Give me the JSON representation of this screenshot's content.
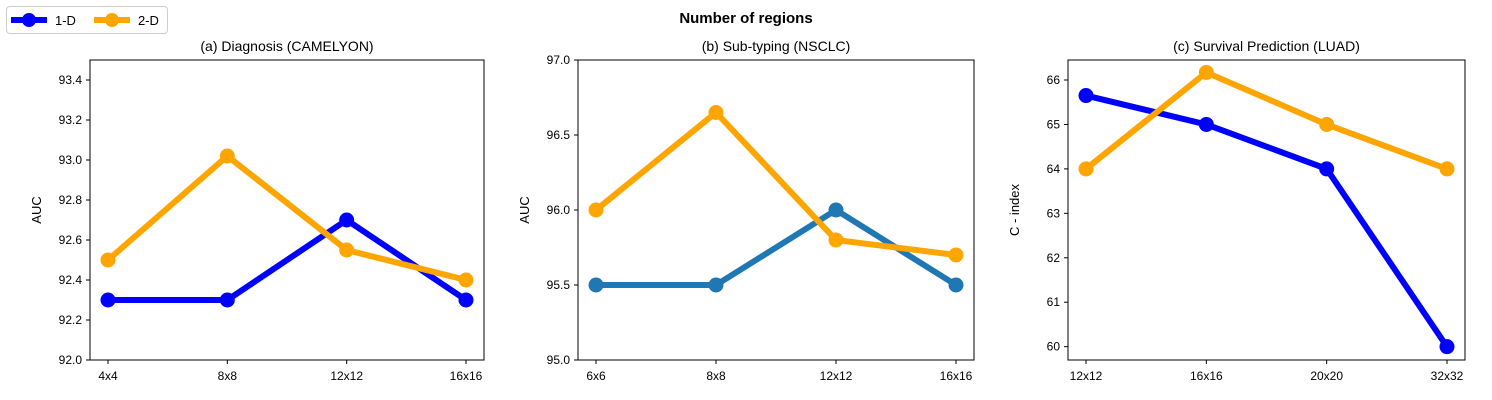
{
  "suptitle": "Number of regions",
  "legend": [
    {
      "label": "1-D",
      "color": "#0000ff"
    },
    {
      "label": "2-D",
      "color": "#ffa500"
    }
  ],
  "chart_data": [
    {
      "type": "line",
      "title": "(a) Diagnosis (CAMELYON)",
      "xlabel": "",
      "ylabel": "AUC",
      "categories": [
        "4x4",
        "8x8",
        "12x12",
        "16x16"
      ],
      "ylim": [
        92.0,
        93.5
      ],
      "yticks": [
        "92.0",
        "92.2",
        "92.4",
        "92.6",
        "92.8",
        "93.0",
        "93.2",
        "93.4"
      ],
      "series": [
        {
          "name": "1-D",
          "color": "#0000ff",
          "values": [
            92.3,
            92.3,
            92.7,
            92.3
          ]
        },
        {
          "name": "2-D",
          "color": "#ffa500",
          "values": [
            92.5,
            93.02,
            92.55,
            92.4
          ]
        }
      ]
    },
    {
      "type": "line",
      "title": "(b) Sub-typing (NSCLC)",
      "xlabel": "",
      "ylabel": "AUC",
      "categories": [
        "6x6",
        "8x8",
        "12x12",
        "16x16"
      ],
      "ylim": [
        95.0,
        97.0
      ],
      "yticks": [
        "95.0",
        "95.5",
        "96.0",
        "96.5",
        "97.0"
      ],
      "series": [
        {
          "name": "",
          "color": "#1f77b4",
          "values": [
            95.5,
            95.5,
            96.0,
            95.5
          ]
        },
        {
          "name": "2-D",
          "color": "#ffa500",
          "values": [
            96.0,
            96.65,
            95.8,
            95.7
          ]
        }
      ]
    },
    {
      "type": "line",
      "title": "(c) Survival Prediction (LUAD)",
      "xlabel": "",
      "ylabel": "C - index",
      "categories": [
        "12x12",
        "16x16",
        "20x20",
        "32x32"
      ],
      "ylim": [
        59.7,
        66.45
      ],
      "yticks": [
        "60",
        "61",
        "62",
        "63",
        "64",
        "65",
        "66"
      ],
      "series": [
        {
          "name": "1-D",
          "color": "#0000ff",
          "values": [
            65.65,
            65.0,
            64.0,
            60.0
          ]
        },
        {
          "name": "2-D",
          "color": "#ffa500",
          "values": [
            64.0,
            66.17,
            65.0,
            64.0
          ]
        }
      ]
    }
  ]
}
